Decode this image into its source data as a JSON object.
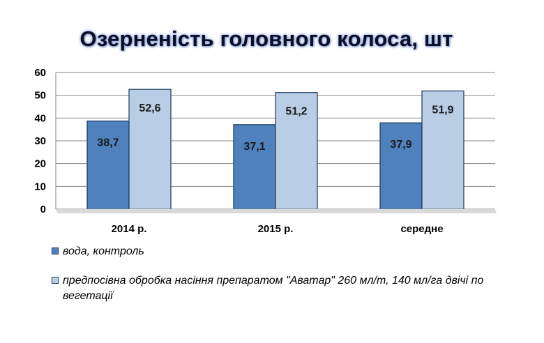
{
  "chart_data": {
    "type": "bar",
    "title": "Озерненість головного колоса, шт",
    "categories": [
      "2014 р.",
      "2015 р.",
      "середне"
    ],
    "series": [
      {
        "name": "вода, контроль",
        "values": [
          38.7,
          37.1,
          37.9
        ],
        "labels": [
          "38,7",
          "37,1",
          "37,9"
        ],
        "color": "#4f81bd"
      },
      {
        "name": "предпосівна обробка насіння препаратом \"Аватар\" 260 мл/т, 140 мл/га двічі по вегетації",
        "values": [
          52.6,
          51.2,
          51.9
        ],
        "labels": [
          "52,6",
          "51,2",
          "51,9"
        ],
        "color": "#b9cde5"
      }
    ],
    "ylim": [
      0,
      60
    ],
    "yticks": [
      0,
      10,
      20,
      30,
      40,
      50,
      60
    ],
    "grid": true,
    "legend_position": "bottom"
  }
}
